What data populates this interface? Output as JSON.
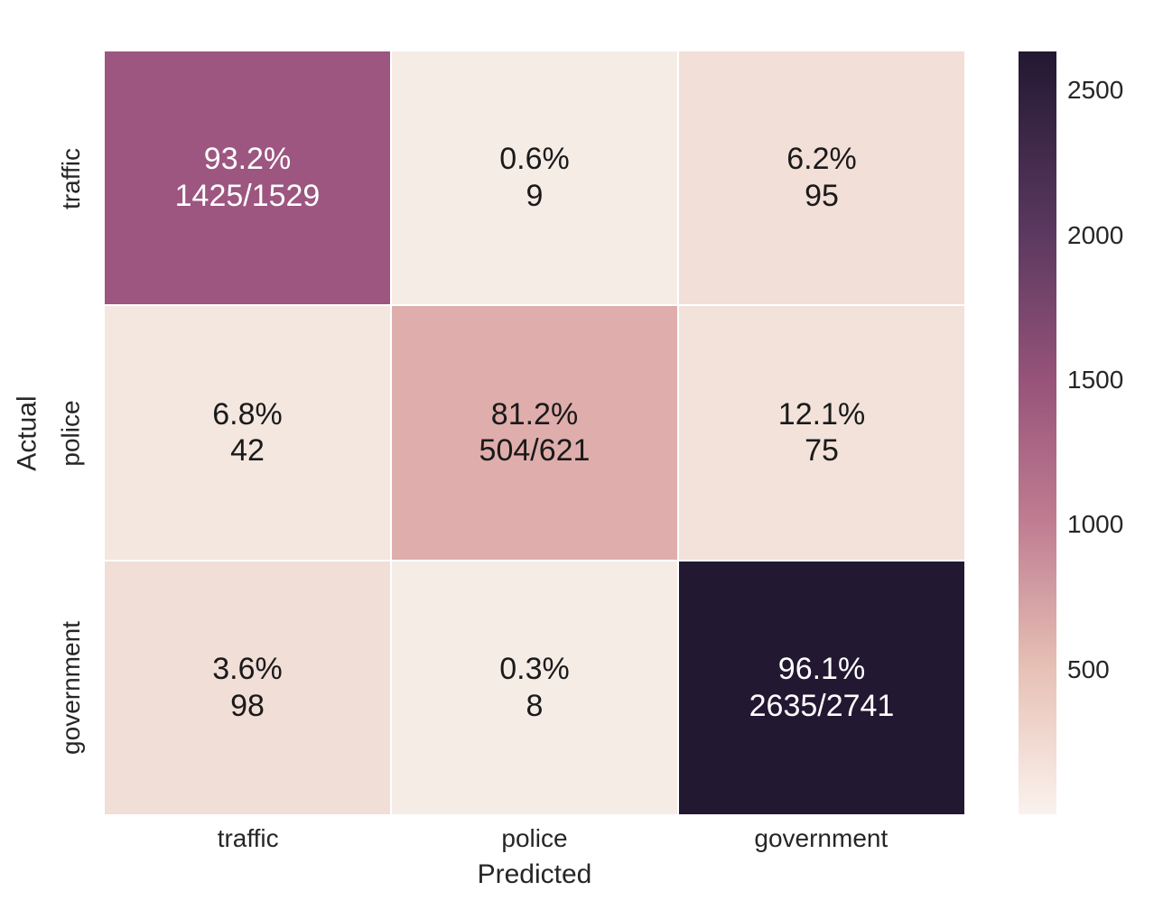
{
  "chart_data": {
    "type": "heatmap",
    "title": "",
    "xlabel": "Predicted",
    "ylabel": "Actual",
    "x_categories": [
      "traffic",
      "police",
      "government"
    ],
    "y_categories": [
      "traffic",
      "police",
      "government"
    ],
    "grid_line_color": "#ffffff",
    "text_color": "#262626",
    "cells": [
      [
        {
          "row": "traffic",
          "col": "traffic",
          "pct": "93.2%",
          "count": "1425/1529",
          "value": 1425,
          "bg": "#9c5680",
          "fg": "#ffffff"
        },
        {
          "row": "traffic",
          "col": "police",
          "pct": "0.6%",
          "count": "9",
          "value": 9,
          "bg": "#f6ece6",
          "fg": "#1a1a1a"
        },
        {
          "row": "traffic",
          "col": "government",
          "pct": "6.2%",
          "count": "95",
          "value": 95,
          "bg": "#f2dfd8",
          "fg": "#1a1a1a"
        }
      ],
      [
        {
          "row": "police",
          "col": "traffic",
          "pct": "6.8%",
          "count": "42",
          "value": 42,
          "bg": "#f4e7e0",
          "fg": "#1a1a1a"
        },
        {
          "row": "police",
          "col": "police",
          "pct": "81.2%",
          "count": "504/621",
          "value": 504,
          "bg": "#dfaeac",
          "fg": "#1a1a1a"
        },
        {
          "row": "police",
          "col": "government",
          "pct": "12.1%",
          "count": "75",
          "value": 75,
          "bg": "#f2e2da",
          "fg": "#1a1a1a"
        }
      ],
      [
        {
          "row": "government",
          "col": "traffic",
          "pct": "3.6%",
          "count": "98",
          "value": 98,
          "bg": "#f1ded7",
          "fg": "#1a1a1a"
        },
        {
          "row": "government",
          "col": "police",
          "pct": "0.3%",
          "count": "8",
          "value": 8,
          "bg": "#f6ece6",
          "fg": "#1a1a1a"
        },
        {
          "row": "government",
          "col": "government",
          "pct": "96.1%",
          "count": "2635/2741",
          "value": 2635,
          "bg": "#221832",
          "fg": "#ffffff"
        }
      ]
    ],
    "colorbar": {
      "vmin": 0,
      "vmax": 2635,
      "ticks": [
        500,
        1000,
        1500,
        2000,
        2500
      ],
      "gradient_stops": [
        {
          "pos": 0.0,
          "color": "#221832"
        },
        {
          "pos": 0.241,
          "color": "#5c3960"
        },
        {
          "pos": 0.431,
          "color": "#975379"
        },
        {
          "pos": 0.62,
          "color": "#c07e92"
        },
        {
          "pos": 0.81,
          "color": "#e7c1b5"
        },
        {
          "pos": 1.0,
          "color": "#faf2ee"
        }
      ]
    }
  }
}
